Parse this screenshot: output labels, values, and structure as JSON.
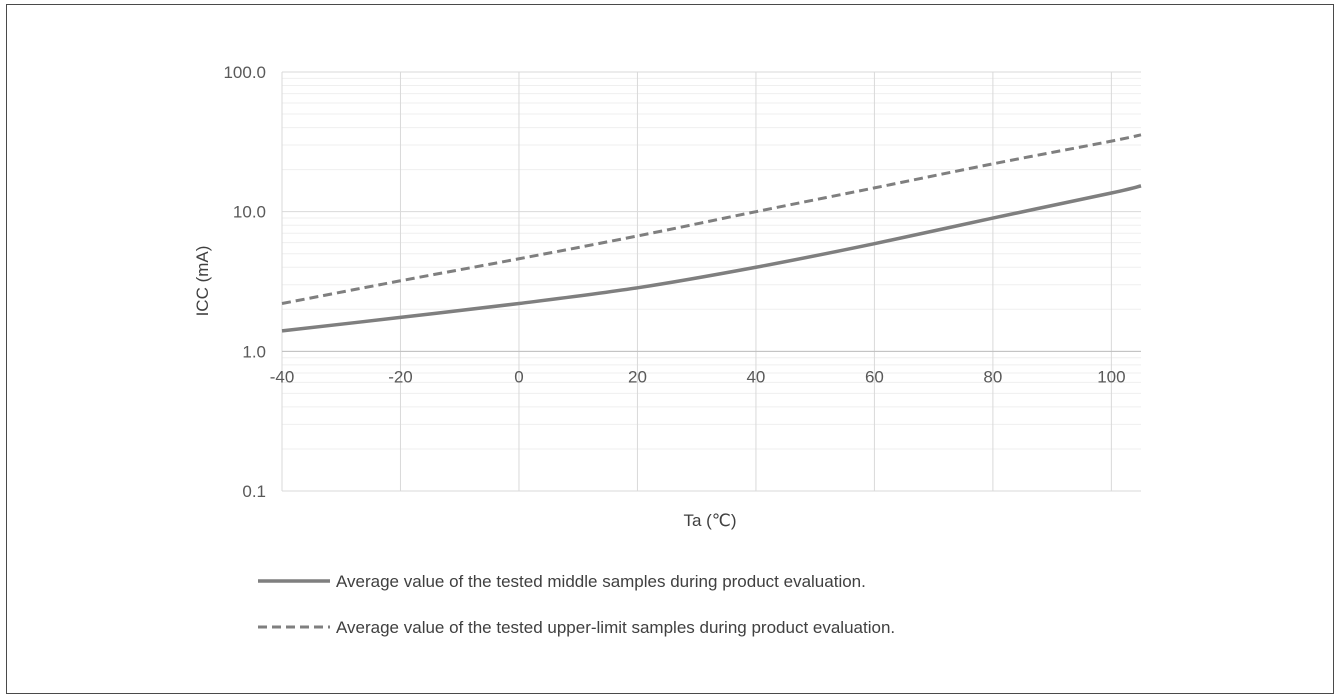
{
  "chart_data": {
    "type": "line",
    "xlabel": "Ta (℃)",
    "ylabel": "ICC (mA)",
    "yscale": "log",
    "xlim": [
      -40,
      105
    ],
    "ylim": [
      0.1,
      100
    ],
    "x_ticks": [
      -40,
      -20,
      0,
      20,
      40,
      60,
      80,
      100
    ],
    "y_ticks": [
      0.1,
      1.0,
      10.0,
      100.0
    ],
    "y_tick_labels": [
      "0.1",
      "1.0",
      "10.0",
      "100.0"
    ],
    "grid": true,
    "legend_position": "bottom",
    "series": [
      {
        "name": "Average value of the tested middle samples during product evaluation.",
        "style": "solid",
        "color": "#7f7f7f",
        "x": [
          -40,
          -20,
          0,
          20,
          40,
          60,
          80,
          100,
          105
        ],
        "y": [
          1.4,
          1.75,
          2.2,
          2.85,
          4.0,
          5.9,
          9.0,
          13.6,
          15.3
        ]
      },
      {
        "name": "Average value of the tested upper-limit samples during product evaluation.",
        "style": "dashed",
        "color": "#7f7f7f",
        "x": [
          -40,
          -20,
          0,
          20,
          40,
          60,
          80,
          100,
          105
        ],
        "y": [
          2.2,
          3.2,
          4.6,
          6.7,
          10.0,
          14.8,
          22.0,
          32.0,
          35.5
        ]
      }
    ]
  }
}
